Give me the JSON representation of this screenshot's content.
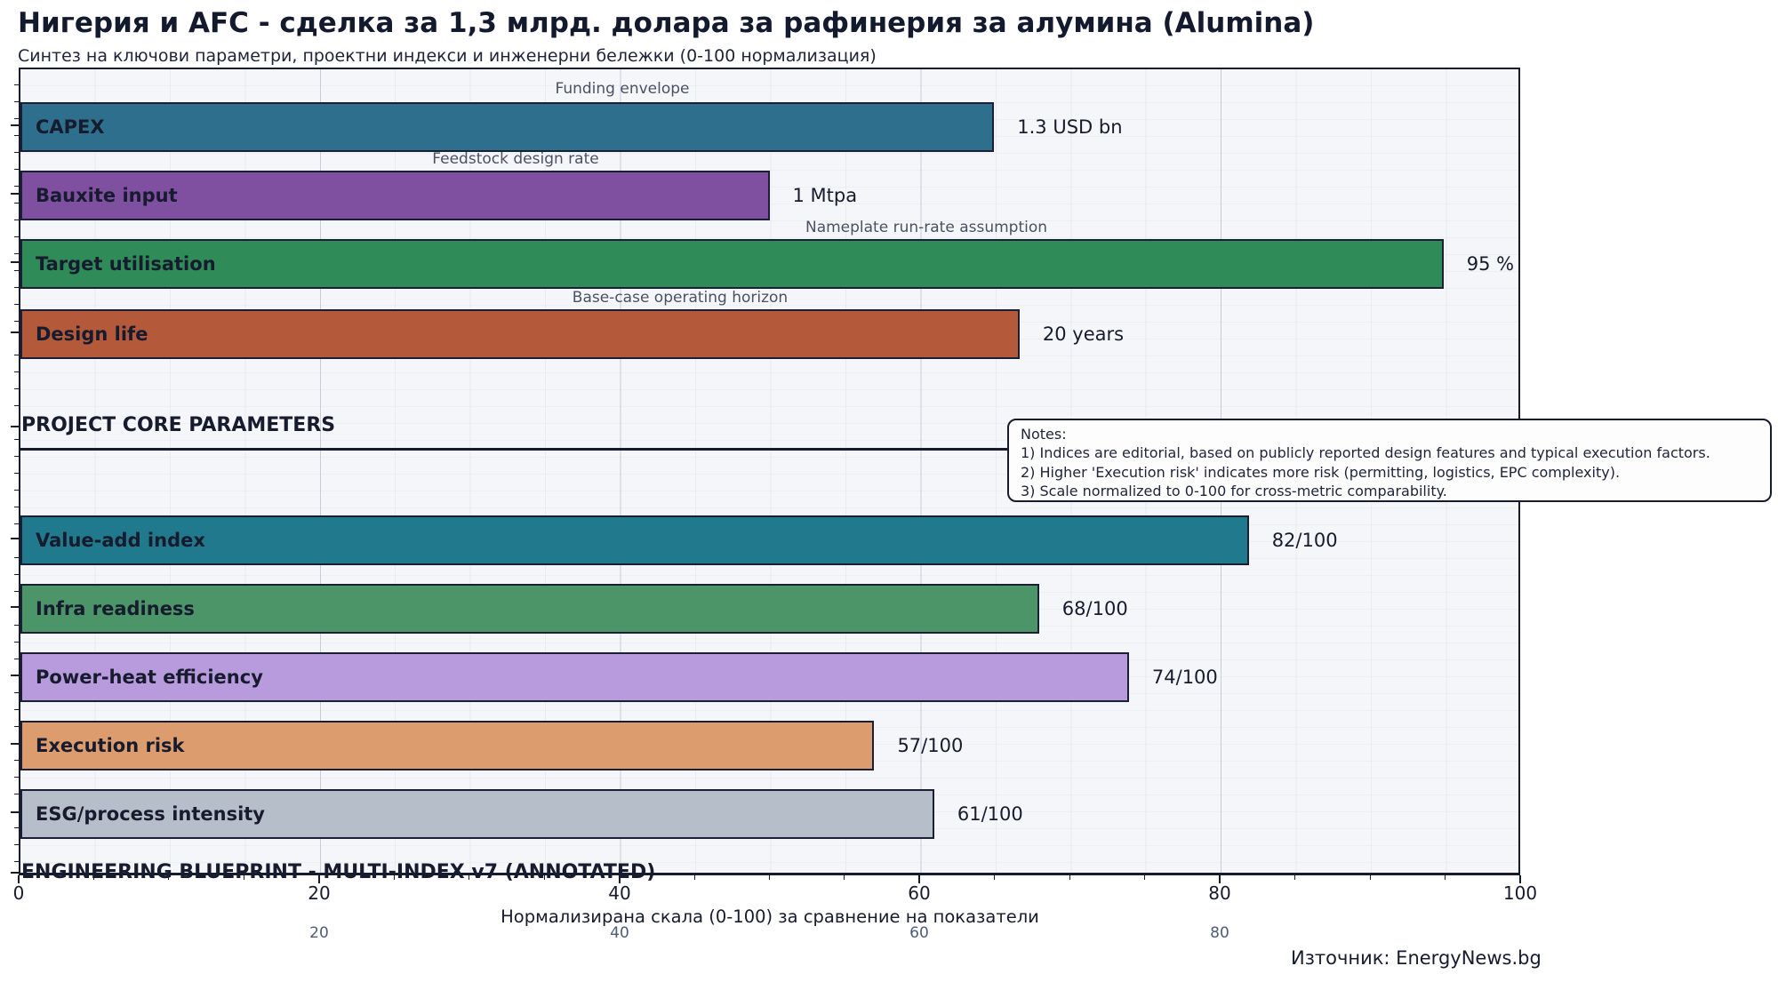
{
  "header": {
    "title": "Нигерия и AFC - сделка за 1,3 млрд. долара за рафинерия за алумина (Alumina)",
    "subtitle": "Синтез на ключови параметри, проектни индекси и инженерни бележки (0-100 нормализация)"
  },
  "chart_data": {
    "type": "bar",
    "orientation": "horizontal",
    "xlabel": "Нормализирана скала (0-100) за сравнение на показатели",
    "xlim": [
      0,
      100
    ],
    "grid": true,
    "xticks_major": [
      "0",
      "20",
      "40",
      "60",
      "80",
      "100"
    ],
    "xticks_secondary": [
      "20",
      "40",
      "60",
      "80"
    ],
    "bars": [
      {
        "label": "CAPEX",
        "value": 65,
        "display_value": "1.3 USD bn",
        "annotation": "Funding envelope",
        "color": "#2e6f8e"
      },
      {
        "label": "Bauxite input",
        "value": 50,
        "display_value": "1 Mtpa",
        "annotation": "Feedstock design rate",
        "color": "#7f4fa0"
      },
      {
        "label": "Target utilisation",
        "value": 95,
        "display_value": "95 %",
        "annotation": "Nameplate run-rate assumption",
        "color": "#2f8b57"
      },
      {
        "label": "Design life",
        "value": 66.7,
        "display_value": "20 years",
        "annotation": "Base-case operating horizon",
        "color": "#b4593a"
      },
      {
        "label": "Value-add index",
        "value": 82,
        "display_value": "82/100",
        "annotation": "",
        "color": "#20798c"
      },
      {
        "label": "Infra readiness",
        "value": 68,
        "display_value": "68/100",
        "annotation": "",
        "color": "#4c9568"
      },
      {
        "label": "Power-heat efficiency",
        "value": 74,
        "display_value": "74/100",
        "annotation": "",
        "color": "#b79bdd"
      },
      {
        "label": "Execution risk",
        "value": 57,
        "display_value": "57/100",
        "annotation": "",
        "color": "#dc9c6e"
      },
      {
        "label": "ESG/process intensity",
        "value": 61,
        "display_value": "61/100",
        "annotation": "",
        "color": "#b6bec9"
      }
    ],
    "section_labels": {
      "core": "PROJECT CORE PARAMETERS",
      "blueprint": "ENGINEERING BLUEPRINT - MULTI-INDEX v7 (ANNOTATED)"
    },
    "notes": {
      "line0": "Notes:",
      "line1": "1) Indices are editorial, based on publicly reported design features and typical execution factors.",
      "line2": "2) Higher 'Execution risk' indicates more risk (permitting, logistics, EPC complexity).",
      "line3": "3) Scale normalized to 0-100 for cross-metric comparability."
    },
    "source": "Източник: EnergyNews.bg"
  }
}
